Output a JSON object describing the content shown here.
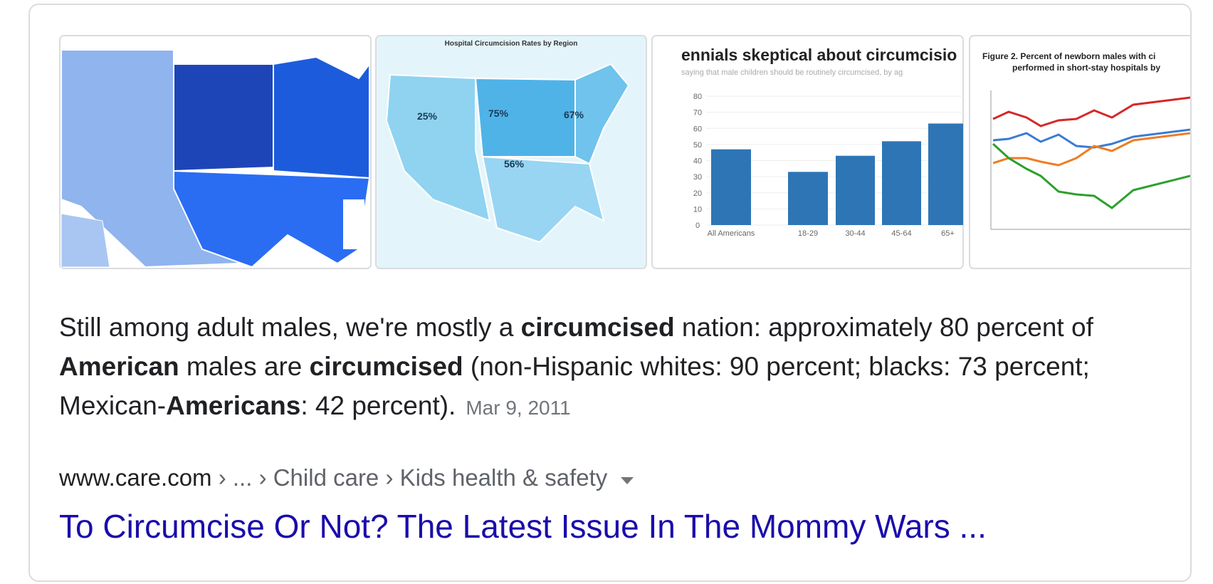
{
  "thumbnails": {
    "map_rates": {
      "title": "Hospital Circumcision Rates by Region",
      "labels": [
        "25%",
        "75%",
        "67%",
        "56%"
      ]
    },
    "bar_chart": {
      "title": "ennials skeptical about circumcisio",
      "subtitle": "saying that male children should be routinely circumcised, by ag",
      "ylim": [
        0,
        80
      ],
      "yticks": [
        0,
        10,
        20,
        30,
        40,
        50,
        60,
        70,
        80
      ],
      "categories": [
        "All Americans",
        "18-29",
        "30-44",
        "45-64",
        "65+"
      ],
      "values": [
        47,
        33,
        43,
        52,
        63
      ],
      "color": "#2e75b6"
    },
    "line_chart": {
      "title": [
        "Figure 2. Percent of newborn males with ci",
        "performed in short-stay hospitals by"
      ]
    }
  },
  "snippet": {
    "parts": [
      {
        "text": "Still among adult males, we're mostly a ",
        "bold": false
      },
      {
        "text": "circumcised",
        "bold": true
      },
      {
        "text": " nation: approximately 80 percent of ",
        "bold": false
      },
      {
        "text": "American",
        "bold": true
      },
      {
        "text": " males are ",
        "bold": false
      },
      {
        "text": "circumcised",
        "bold": true
      },
      {
        "text": " (non-Hispanic whites: 90 percent; blacks: 73 percent; Mexican-",
        "bold": false
      },
      {
        "text": "Americans",
        "bold": true
      },
      {
        "text": ": 42 percent).",
        "bold": false
      }
    ],
    "date": "Mar 9, 2011"
  },
  "breadcrumb": {
    "site": "www.care.com",
    "path": " › ... › Child care › Kids health & safety"
  },
  "title": "To Circumcise Or Not? The Latest Issue In The Mommy Wars ..."
}
